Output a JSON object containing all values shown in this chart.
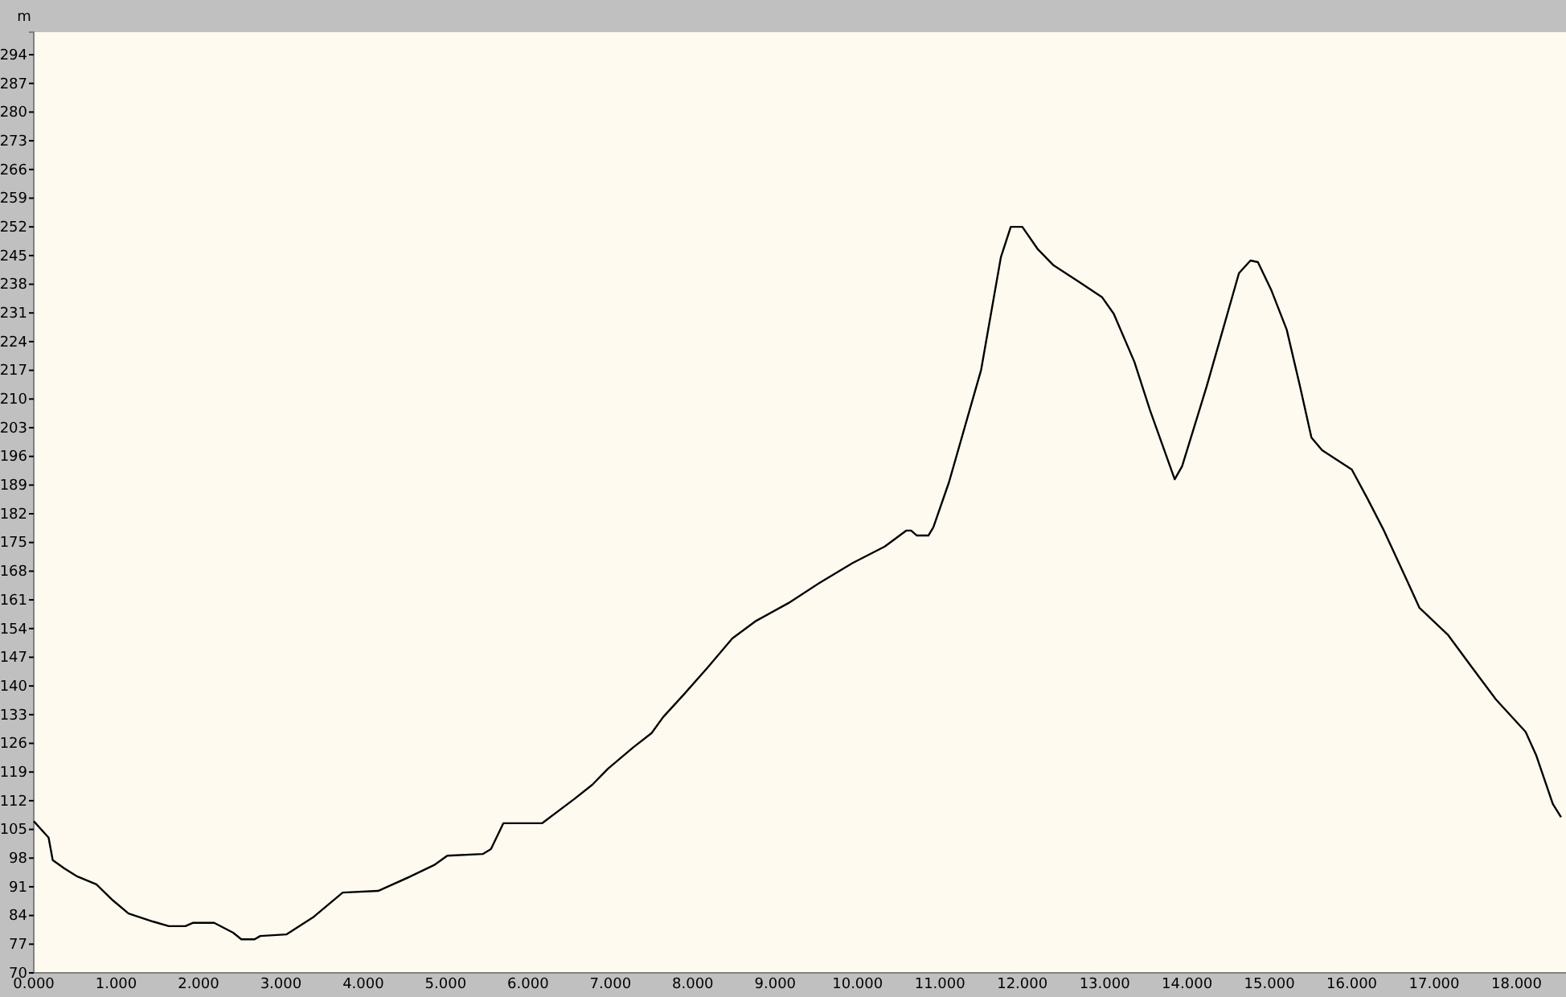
{
  "chart_data": {
    "type": "line",
    "ylabel": "m",
    "xlim": [
      0,
      18.6
    ],
    "ylim": [
      70,
      299.5
    ],
    "xticks": [
      {
        "value": 0,
        "label": "0.000"
      },
      {
        "value": 1,
        "label": "1.000"
      },
      {
        "value": 2,
        "label": "2.000"
      },
      {
        "value": 3,
        "label": "3.000"
      },
      {
        "value": 4,
        "label": "4.000"
      },
      {
        "value": 5,
        "label": "5.000"
      },
      {
        "value": 6,
        "label": "6.000"
      },
      {
        "value": 7,
        "label": "7.000"
      },
      {
        "value": 8,
        "label": "8.000"
      },
      {
        "value": 9,
        "label": "9.000"
      },
      {
        "value": 10,
        "label": "10.000"
      },
      {
        "value": 11,
        "label": "11.000"
      },
      {
        "value": 12,
        "label": "12.000"
      },
      {
        "value": 13,
        "label": "13.000"
      },
      {
        "value": 14,
        "label": "14.000"
      },
      {
        "value": 15,
        "label": "15.000"
      },
      {
        "value": 16,
        "label": "16.000"
      },
      {
        "value": 17,
        "label": "17.000"
      },
      {
        "value": 18,
        "label": "18.000"
      }
    ],
    "yticks": [
      70,
      77,
      84,
      91,
      98,
      105,
      112,
      119,
      126,
      133,
      140,
      147,
      154,
      161,
      168,
      175,
      182,
      189,
      196,
      203,
      210,
      217,
      224,
      231,
      238,
      245,
      252,
      259,
      266,
      273,
      280,
      287,
      294
    ],
    "grid": false,
    "marker": "none",
    "line_style": "solid",
    "series": [
      {
        "color": "#000000",
        "x": [
          0,
          0.18,
          0.23,
          0.37,
          0.53,
          0.76,
          0.96,
          1.15,
          1.45,
          1.64,
          1.84,
          1.93,
          2.19,
          2.42,
          2.52,
          2.68,
          2.75,
          3.07,
          3.4,
          3.75,
          4.18,
          4.57,
          4.86,
          5.02,
          5.45,
          5.55,
          5.7,
          6.17,
          6.56,
          6.78,
          6.97,
          7.27,
          7.5,
          7.64,
          7.89,
          8.18,
          8.48,
          8.77,
          9.16,
          9.55,
          9.94,
          10.33,
          10.59,
          10.65,
          10.72,
          10.86,
          10.92,
          11.11,
          11.5,
          11.74,
          11.86,
          12.0,
          12.19,
          12.38,
          12.68,
          12.97,
          13.11,
          13.36,
          13.55,
          13.85,
          13.94,
          14.24,
          14.63,
          14.77,
          14.86,
          15.02,
          15.21,
          15.37,
          15.51,
          15.64,
          16.0,
          16.19,
          16.39,
          16.68,
          16.82,
          17.17,
          17.46,
          17.75,
          18.11,
          18.24,
          18.44,
          18.54
        ],
        "values": [
          107,
          103,
          97.5,
          95.5,
          93.5,
          91.6,
          87.7,
          84.5,
          82.5,
          81.4,
          81.4,
          82.2,
          82.2,
          79.8,
          78.2,
          78.2,
          79,
          79.4,
          83.7,
          89.6,
          90,
          93.5,
          96.3,
          98.6,
          99,
          100.2,
          106.5,
          106.5,
          112.4,
          115.9,
          119.8,
          124.9,
          128.5,
          132.4,
          137.9,
          144.5,
          151.6,
          155.9,
          160.2,
          165.3,
          170,
          174,
          177.9,
          177.9,
          176.7,
          176.7,
          178.7,
          189.7,
          217.1,
          244.6,
          252,
          252,
          246.5,
          242.6,
          238.7,
          234.8,
          230.8,
          219.1,
          207.3,
          190.4,
          193.6,
          213.2,
          240.7,
          243.8,
          243.4,
          236.7,
          226.9,
          213.2,
          200.6,
          197.5,
          192.8,
          185.7,
          177.9,
          165.3,
          159.1,
          152.4,
          144.5,
          136.7,
          128.8,
          123,
          111.2,
          108
        ]
      }
    ]
  }
}
